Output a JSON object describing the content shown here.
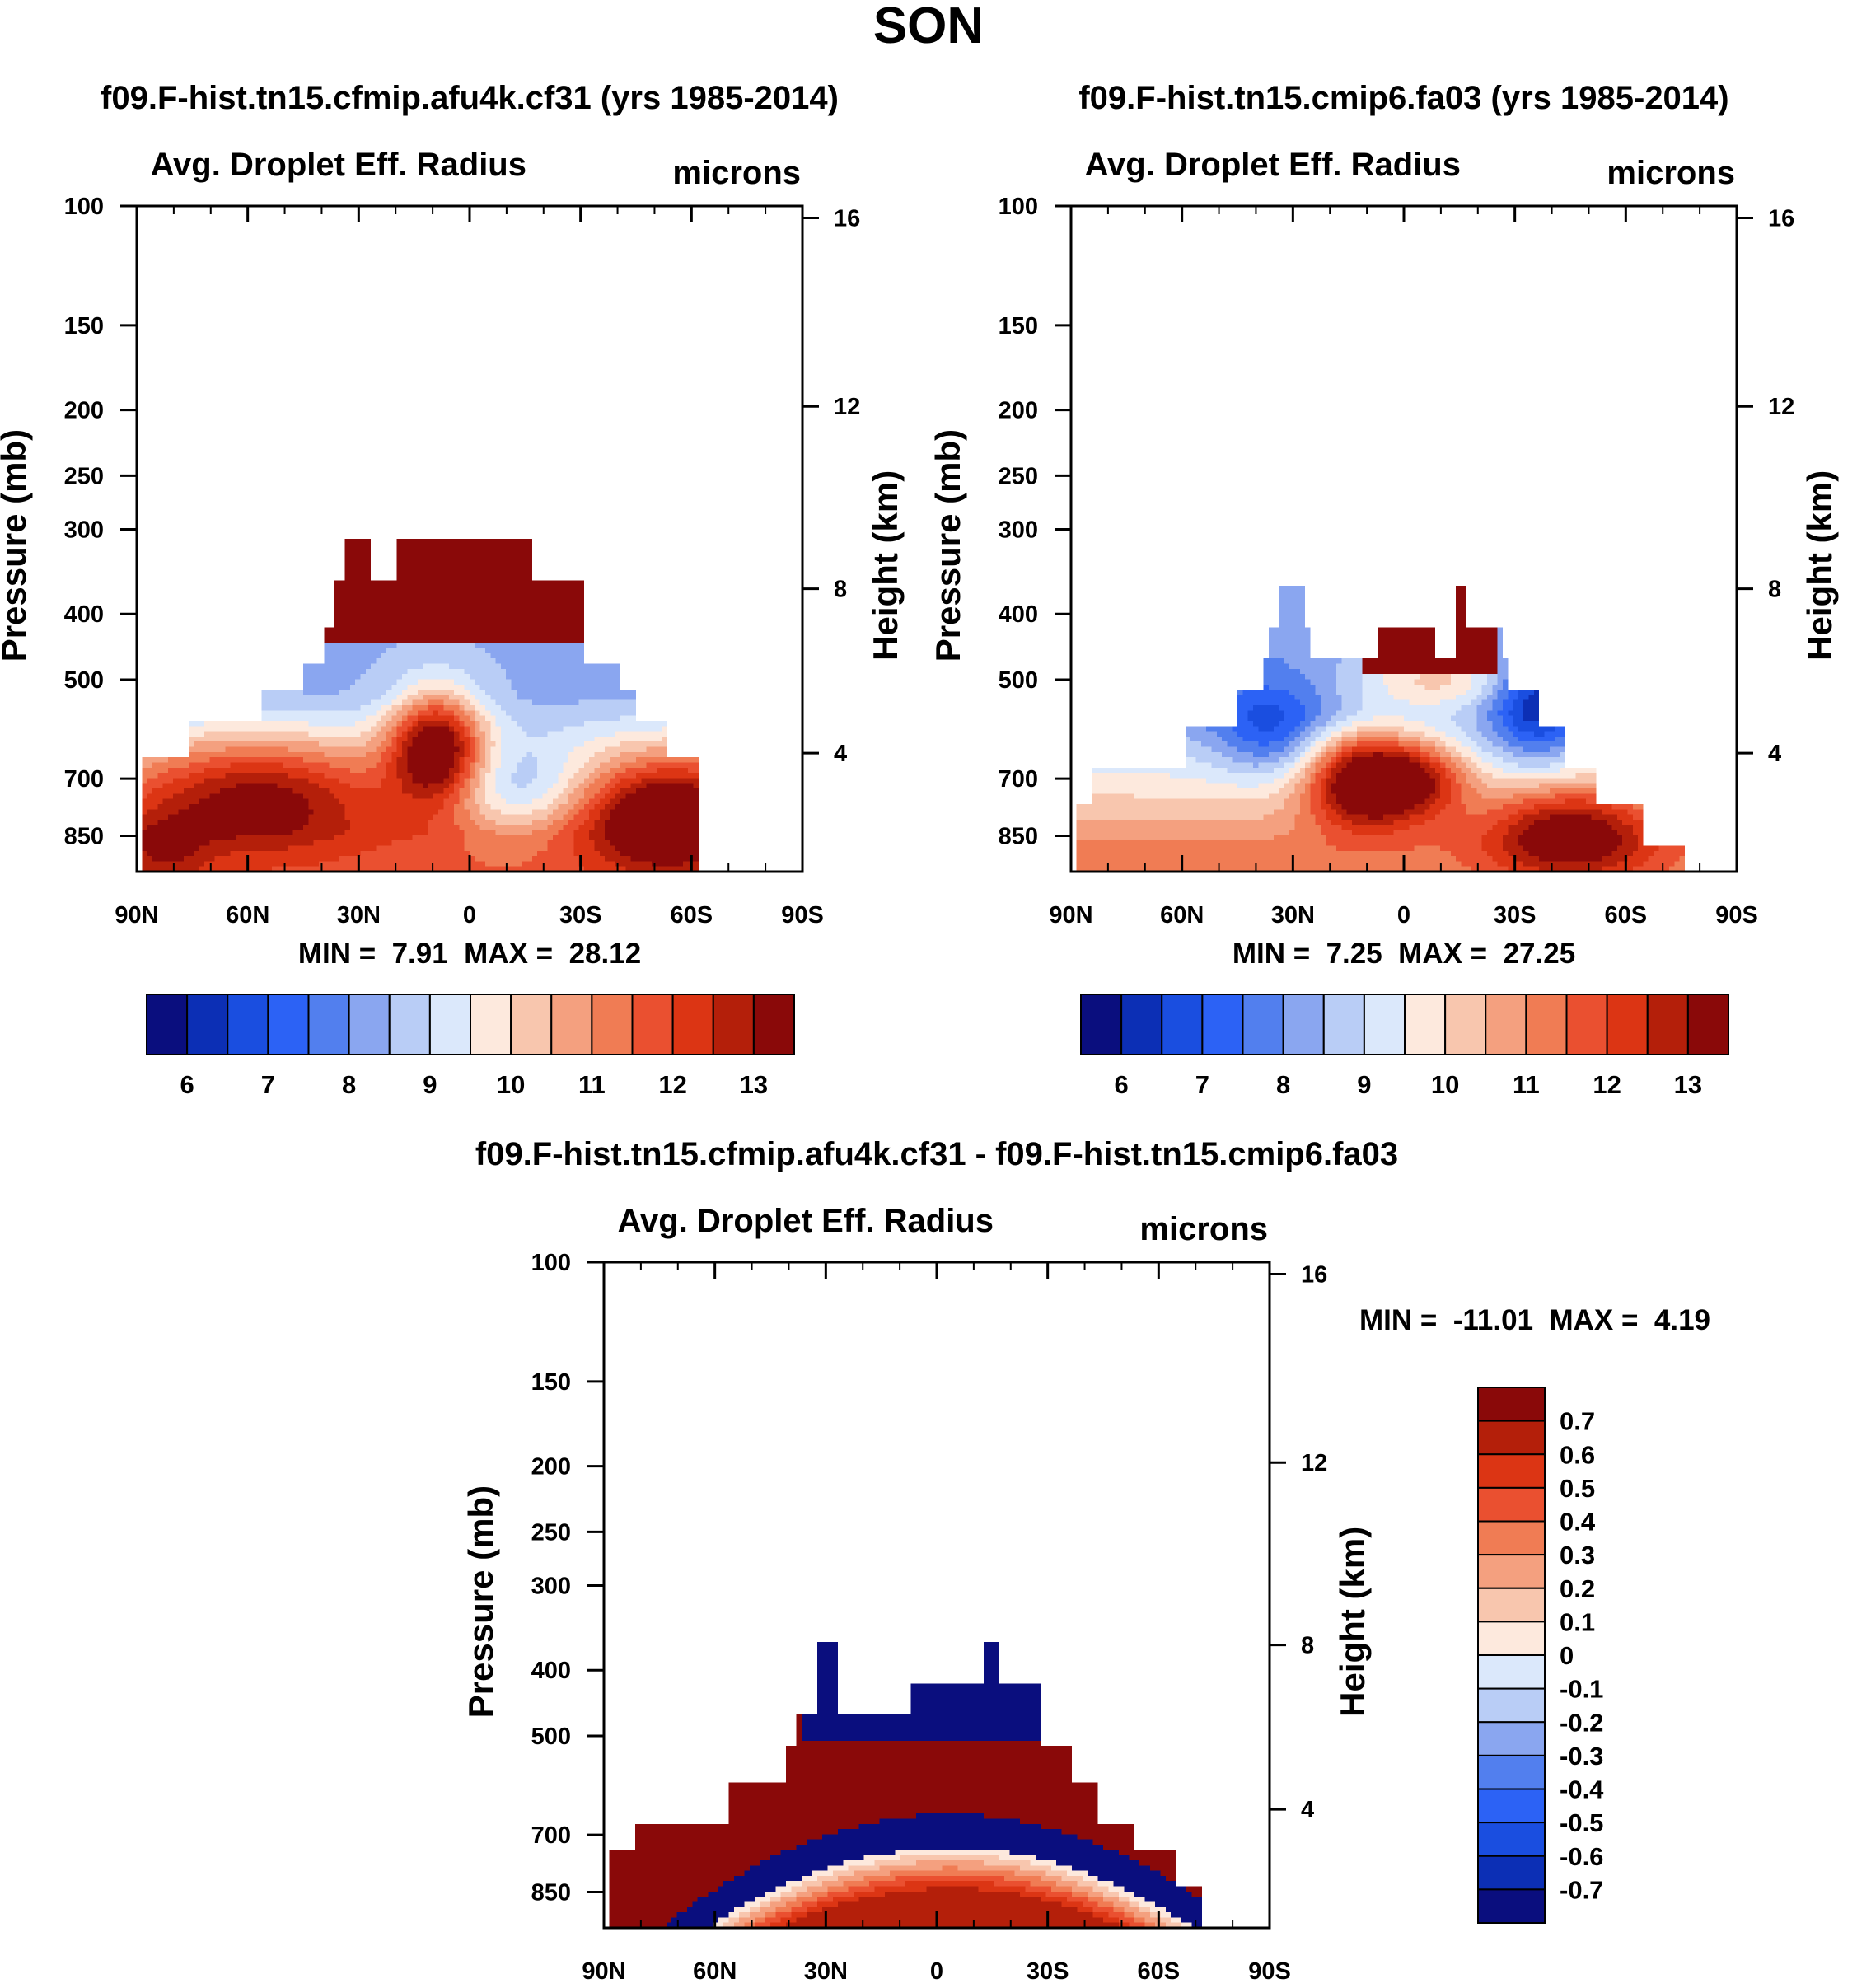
{
  "page_title": "SON",
  "chart_data": [
    {
      "type": "heatmap",
      "title": "f09.F-hist.tn15.cfmip.afu4k.cf31 (yrs 1985-2014)",
      "left_label": "Avg. Droplet Eff. Radius",
      "right_label": "microns",
      "ylabel": "Pressure (mb)",
      "ylabel_right": "Height (km)",
      "x_ticks": [
        "90N",
        "60N",
        "30N",
        "0",
        "30S",
        "60S",
        "90S"
      ],
      "y_ticks": [
        "100",
        "150",
        "200",
        "250",
        "300",
        "400",
        "500",
        "700",
        "850"
      ],
      "y_ticks_right": [
        "16",
        "12",
        "8",
        "4"
      ],
      "min_label": "MIN =",
      "min_value": "7.91",
      "max_label": "MAX =",
      "max_value": "28.12",
      "colorbar_labels": [
        "6",
        "7",
        "8",
        "9",
        "10",
        "11",
        "12",
        "13"
      ]
    },
    {
      "type": "heatmap",
      "title": "f09.F-hist.tn15.cmip6.fa03 (yrs 1985-2014)",
      "left_label": "Avg. Droplet Eff. Radius",
      "right_label": "microns",
      "ylabel": "Pressure (mb)",
      "ylabel_right": "Height (km)",
      "x_ticks": [
        "90N",
        "60N",
        "30N",
        "0",
        "30S",
        "60S",
        "90S"
      ],
      "y_ticks": [
        "100",
        "150",
        "200",
        "250",
        "300",
        "400",
        "500",
        "700",
        "850"
      ],
      "y_ticks_right": [
        "16",
        "12",
        "8",
        "4"
      ],
      "min_label": "MIN =",
      "min_value": "7.25",
      "max_label": "MAX =",
      "max_value": "27.25",
      "colorbar_labels": [
        "6",
        "7",
        "8",
        "9",
        "10",
        "11",
        "12",
        "13"
      ]
    },
    {
      "type": "heatmap",
      "title": "f09.F-hist.tn15.cfmip.afu4k.cf31 - f09.F-hist.tn15.cmip6.fa03",
      "left_label": "Avg. Droplet Eff. Radius",
      "right_label": "microns",
      "ylabel": "Pressure (mb)",
      "ylabel_right": "Height (km)",
      "x_ticks": [
        "90N",
        "60N",
        "30N",
        "0",
        "30S",
        "60S",
        "90S"
      ],
      "y_ticks": [
        "100",
        "150",
        "200",
        "250",
        "300",
        "400",
        "500",
        "700",
        "850"
      ],
      "y_ticks_right": [
        "16",
        "12",
        "8",
        "4"
      ],
      "min_label": "MIN =",
      "min_value": "-11.01",
      "max_label": "MAX =",
      "max_value": "4.19",
      "colorbar_labels": [
        "0.7",
        "0.6",
        "0.5",
        "0.4",
        "0.3",
        "0.2",
        "0.1",
        "0",
        "-0.1",
        "-0.2",
        "-0.3",
        "-0.4",
        "-0.5",
        "-0.6",
        "-0.7"
      ]
    }
  ],
  "colors": {
    "abs_scale": [
      "#0a0e7e",
      "#0c2fb5",
      "#1a4ee0",
      "#2c62f5",
      "#527fee",
      "#8aa6f0",
      "#b9cdf6",
      "#dbe8fb",
      "#fde9dd",
      "#f8c6ae",
      "#f4a07f",
      "#f07c54",
      "#ea5030",
      "#dc3514",
      "#b41f0a",
      "#8a0909"
    ],
    "diff_scale": [
      "#8a0909",
      "#b41f0a",
      "#dc3514",
      "#ea5030",
      "#f07c54",
      "#f4a07f",
      "#f8c6ae",
      "#fde9dd",
      "#dbe8fb",
      "#b9cdf6",
      "#8aa6f0",
      "#527fee",
      "#2c62f5",
      "#1a4ee0",
      "#0c2fb5",
      "#0a0e7e"
    ]
  }
}
